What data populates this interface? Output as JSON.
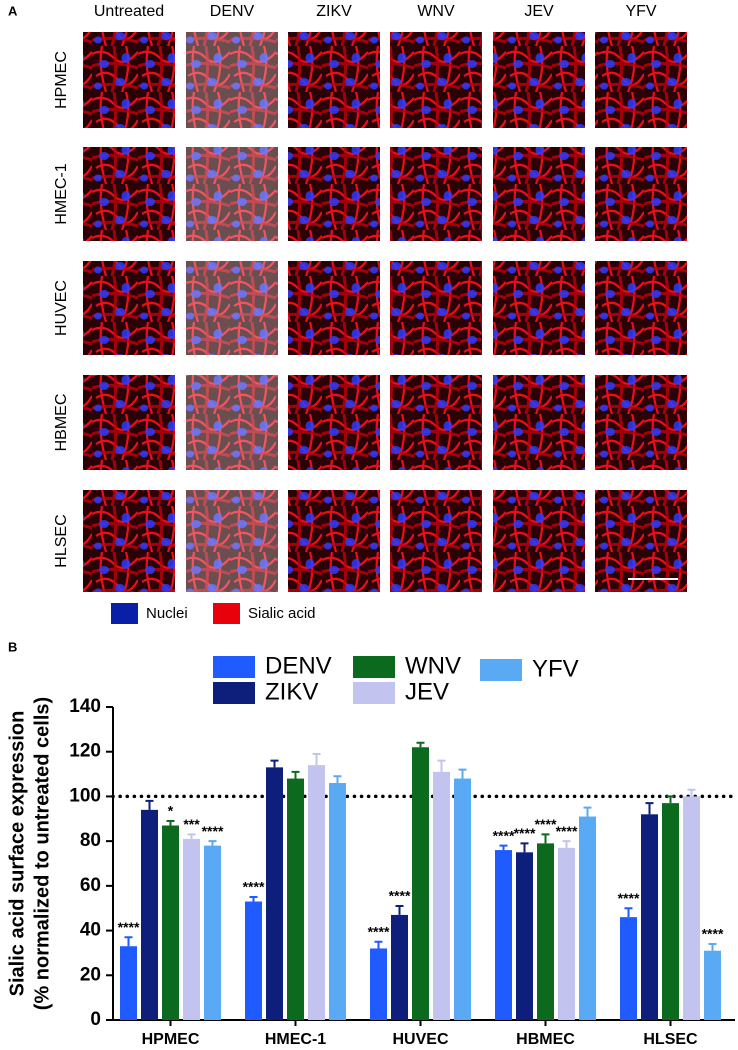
{
  "panel_a": {
    "label": "A",
    "columns": [
      "Untreated",
      "DENV",
      "ZIKV",
      "WNV",
      "JEV",
      "YFV"
    ],
    "rows": [
      "HPMEC",
      "HMEC-1",
      "HUVEC",
      "HBMEC",
      "HLSEC"
    ],
    "legend": [
      {
        "name": "Nuclei",
        "color": "#0a1fa8"
      },
      {
        "name": "Sialic acid",
        "color": "#e8000a"
      }
    ]
  },
  "chart_data": {
    "type": "bar",
    "panel_label": "B",
    "ylabel": [
      "Sialic acid surface expression",
      "(% normalized to untreated cells)"
    ],
    "categories": [
      "HPMEC",
      "HMEC-1",
      "HUVEC",
      "HBMEC",
      "HLSEC"
    ],
    "series": [
      {
        "name": "DENV",
        "color": "#1f5bff",
        "values": [
          33,
          53,
          32,
          76,
          46
        ],
        "errors": [
          4,
          2,
          3,
          2,
          4
        ],
        "significance": [
          "****",
          "****",
          "****",
          "****",
          "****"
        ]
      },
      {
        "name": "ZIKV",
        "color": "#0d1f7a",
        "values": [
          94,
          113,
          47,
          75,
          92
        ],
        "errors": [
          4,
          3,
          4,
          4,
          5
        ],
        "significance": [
          null,
          null,
          "****",
          "****",
          null
        ]
      },
      {
        "name": "WNV",
        "color": "#0b6a1e",
        "values": [
          87,
          108,
          122,
          79,
          97
        ],
        "errors": [
          2,
          3,
          2,
          4,
          3
        ],
        "significance": [
          "*",
          null,
          null,
          "****",
          null
        ]
      },
      {
        "name": "JEV",
        "color": "#c3c3f0",
        "values": [
          81,
          114,
          111,
          77,
          100
        ],
        "errors": [
          2,
          5,
          5,
          3,
          3
        ],
        "significance": [
          "***",
          null,
          null,
          "****",
          null
        ]
      },
      {
        "name": "YFV",
        "color": "#5aa9f5",
        "values": [
          78,
          106,
          108,
          91,
          31
        ],
        "errors": [
          2,
          3,
          4,
          4,
          3
        ],
        "significance": [
          "****",
          null,
          null,
          null,
          "****"
        ]
      }
    ],
    "reference_line": 100,
    "ylim": [
      0,
      140
    ],
    "yticks": [
      0,
      20,
      40,
      60,
      80,
      100,
      120,
      140
    ]
  }
}
